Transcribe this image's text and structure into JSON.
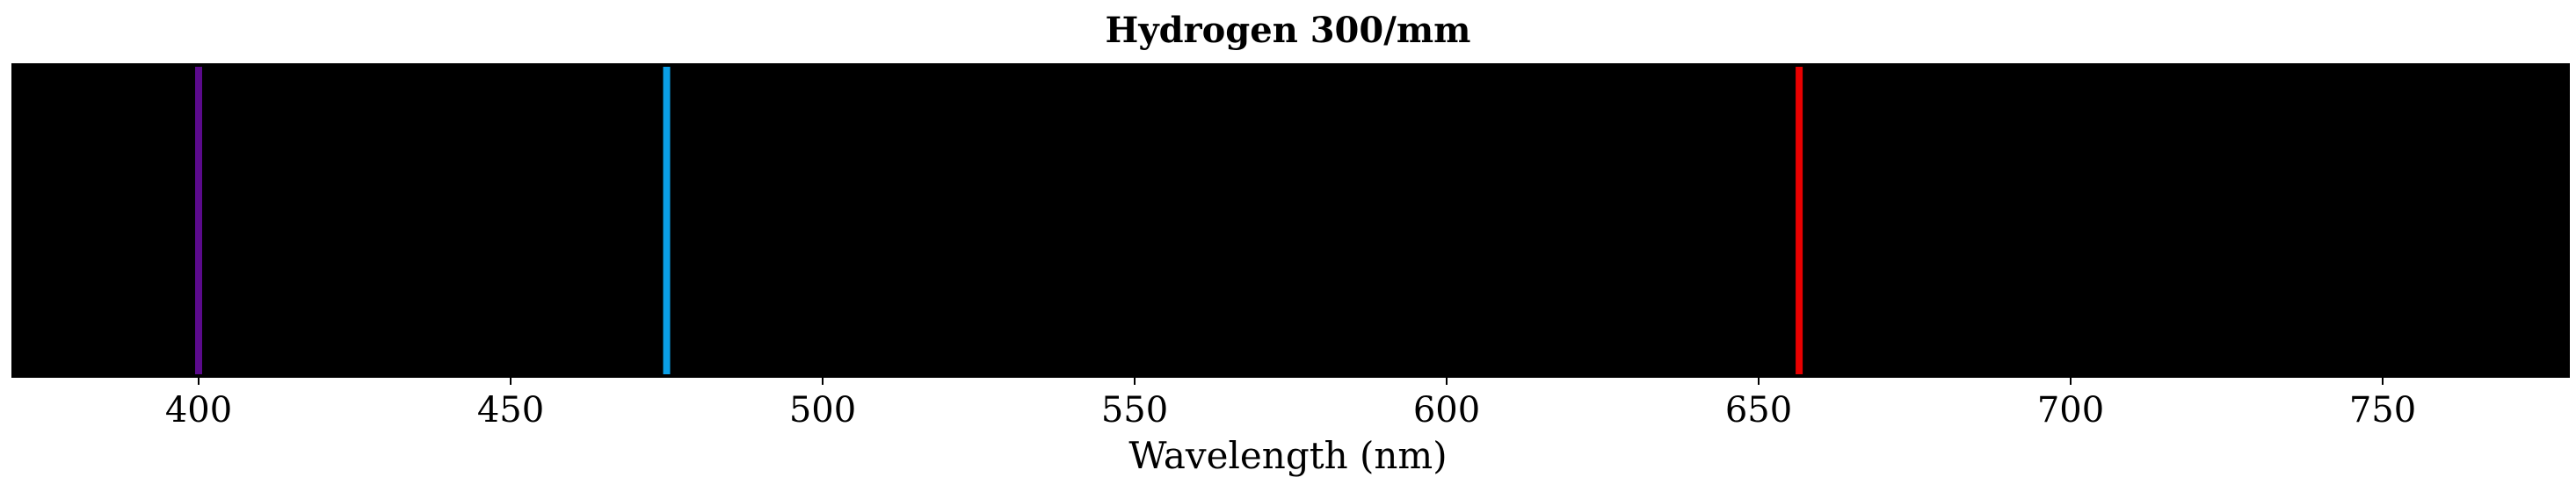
{
  "chart_data": {
    "type": "spectrum",
    "title": "Hydrogen 300/mm",
    "xlabel": "Wavelength (nm)",
    "ylabel": "",
    "xlim": [
      370,
      780
    ],
    "xticks": [
      400,
      450,
      500,
      550,
      600,
      650,
      700,
      750
    ],
    "background_color": "#000000",
    "grid": false,
    "lines": [
      {
        "wavelength": 400,
        "color": "#5b0a8c"
      },
      {
        "wavelength": 475,
        "color": "#0a9fe6"
      },
      {
        "wavelength": 656.5,
        "color": "#e80000"
      }
    ]
  }
}
